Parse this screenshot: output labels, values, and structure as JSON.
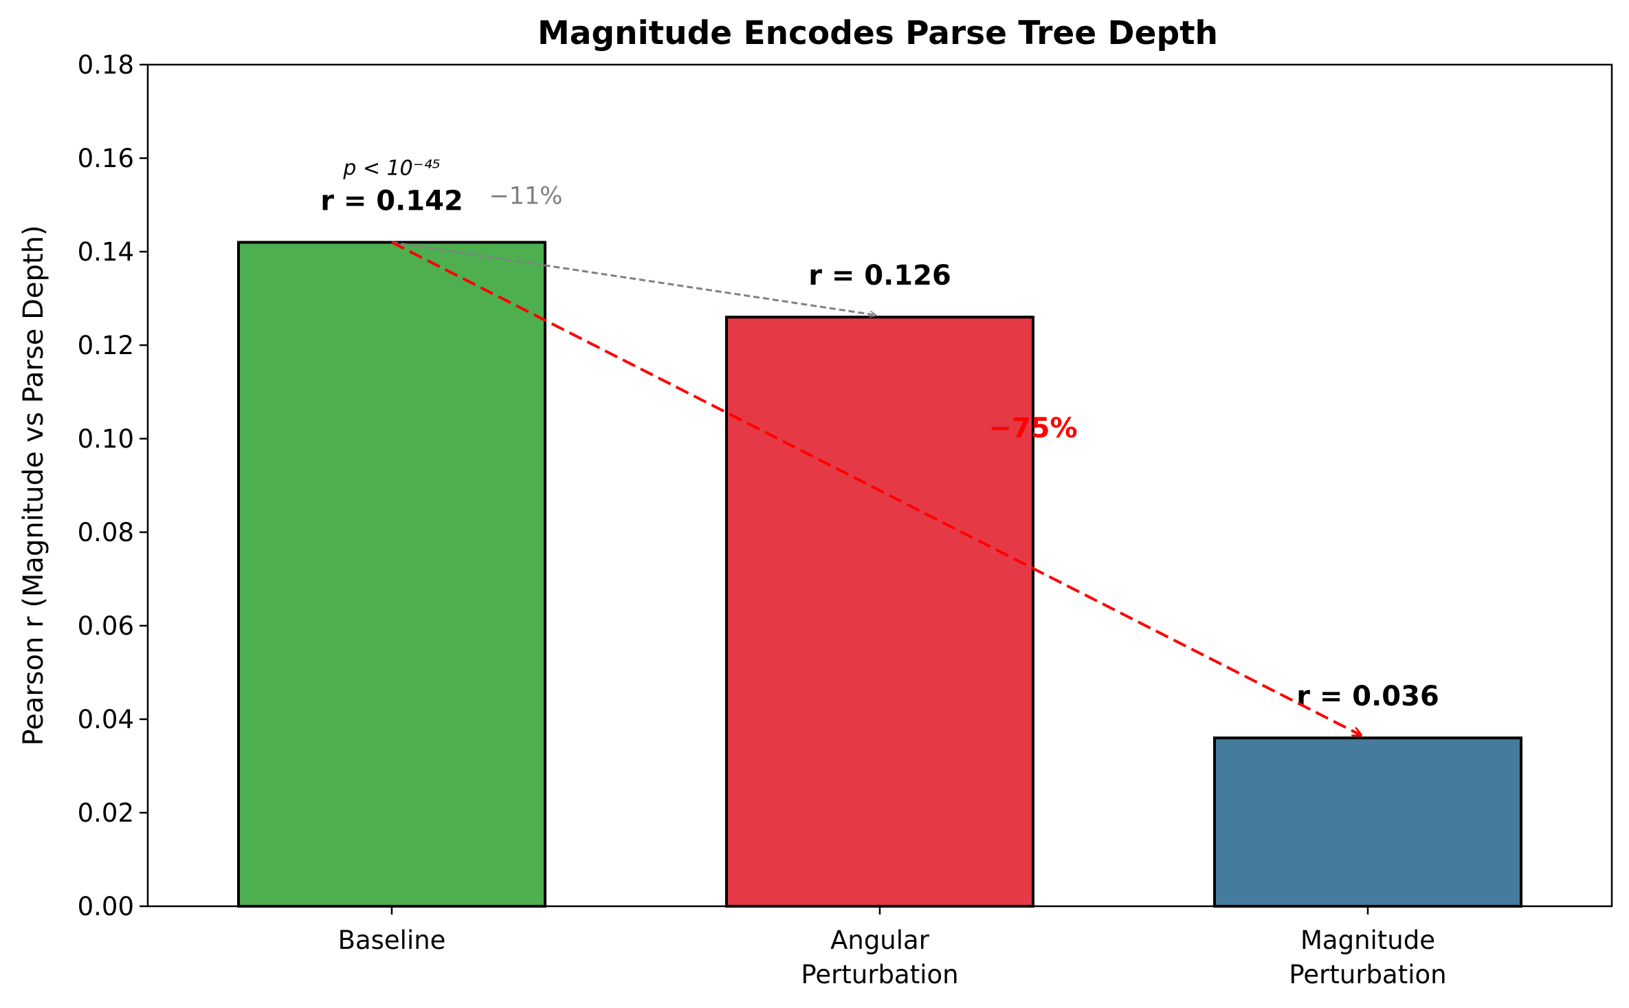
{
  "chart_data": {
    "type": "bar",
    "title": "Magnitude Encodes Parse Tree Depth",
    "xlabel": "",
    "ylabel": "Pearson r (Magnitude vs Parse Depth)",
    "categories": [
      [
        "Baseline"
      ],
      [
        "Angular",
        "Perturbation"
      ],
      [
        "Magnitude",
        "Perturbation"
      ]
    ],
    "values": [
      0.142,
      0.126,
      0.036
    ],
    "colors": [
      "#4daf50",
      "#e63946",
      "#457b9d"
    ],
    "edge_color": "#000000",
    "value_labels": [
      "r = 0.142",
      "r = 0.126",
      "r = 0.036"
    ],
    "significance_label": "p < 10⁻⁴⁵",
    "ylim": [
      0,
      0.18
    ],
    "yticks": [
      "0.00",
      "0.02",
      "0.04",
      "0.06",
      "0.08",
      "0.10",
      "0.12",
      "0.14",
      "0.16",
      "0.18"
    ],
    "grid": false,
    "annotations": [
      {
        "text": "−11%",
        "from_category": 0,
        "to_category": 1,
        "color": "#808080",
        "style": "dashed-arrow"
      },
      {
        "text": "−75%",
        "from_category": 0,
        "to_category": 2,
        "color": "#ff0000",
        "style": "dashed-arrow"
      }
    ]
  }
}
